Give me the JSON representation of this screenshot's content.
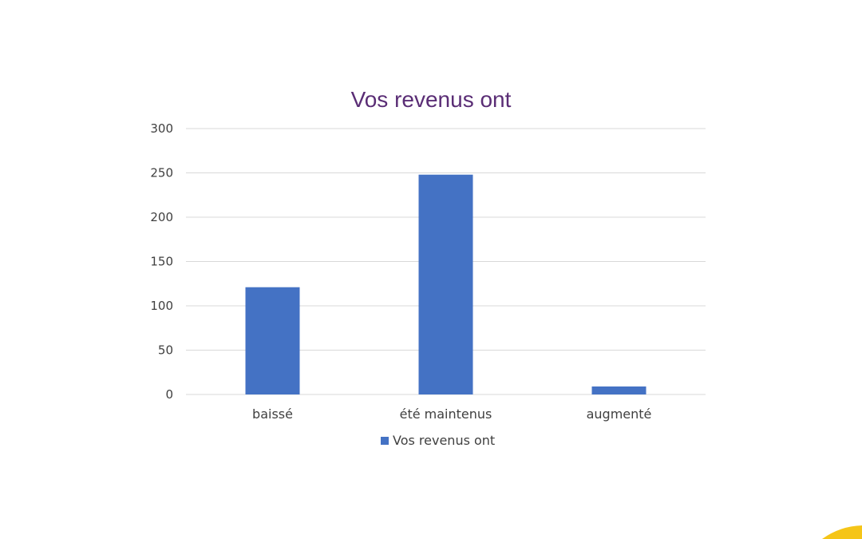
{
  "chart_data": {
    "type": "bar",
    "title": "Vos revenus ont",
    "categories": [
      "baissé",
      "été maintenus",
      "augmenté"
    ],
    "series": [
      {
        "name": "Vos revenus ont",
        "values": [
          121,
          248,
          9
        ]
      }
    ],
    "ylim": [
      0,
      300
    ],
    "yticks": [
      0,
      50,
      100,
      150,
      200,
      250,
      300
    ],
    "grid": true,
    "legend": "bottom",
    "colors": {
      "bar": "#4472c4",
      "grid": "#d9d9d9",
      "title": "#5a2d75",
      "accent": "#f5c518"
    }
  }
}
